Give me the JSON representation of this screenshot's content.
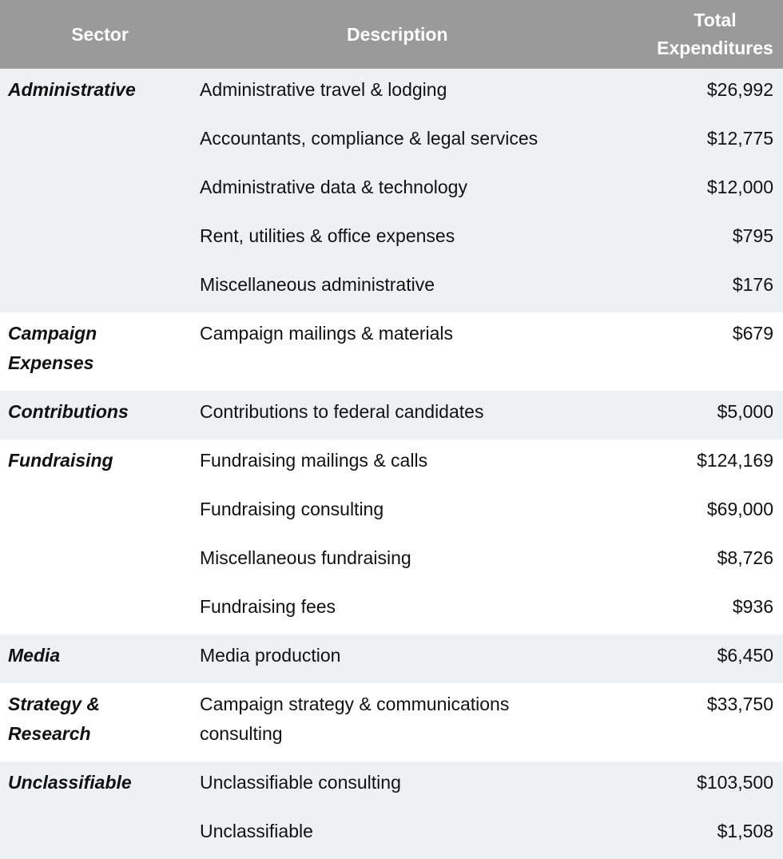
{
  "headers": {
    "sector": "Sector",
    "description": "Description",
    "total_line1": "Total",
    "total_line2": "Expenditures"
  },
  "groups": [
    {
      "sector": "Administrative",
      "shade": true,
      "rows": [
        {
          "desc": "Administrative travel & lodging",
          "amount": "$26,992"
        },
        {
          "desc": "Accountants, compliance & legal services",
          "amount": "$12,775"
        },
        {
          "desc": "Administrative data & technology",
          "amount": "$12,000"
        },
        {
          "desc": "Rent, utilities & office expenses",
          "amount": "$795"
        },
        {
          "desc": "Miscellaneous administrative",
          "amount": "$176"
        }
      ]
    },
    {
      "sector": "Campaign Expenses",
      "sector_line1": "Campaign",
      "sector_line2": "Expenses",
      "shade": false,
      "rows": [
        {
          "desc": "Campaign mailings & materials",
          "amount": "$679"
        }
      ]
    },
    {
      "sector": "Contributions",
      "shade": true,
      "rows": [
        {
          "desc": "Contributions to federal candidates",
          "amount": "$5,000"
        }
      ]
    },
    {
      "sector": "Fundraising",
      "shade": false,
      "rows": [
        {
          "desc": "Fundraising mailings & calls",
          "amount": "$124,169"
        },
        {
          "desc": "Fundraising consulting",
          "amount": "$69,000"
        },
        {
          "desc": "Miscellaneous fundraising",
          "amount": "$8,726"
        },
        {
          "desc": "Fundraising fees",
          "amount": "$936"
        }
      ]
    },
    {
      "sector": "Media",
      "shade": true,
      "rows": [
        {
          "desc": "Media production",
          "amount": "$6,450"
        }
      ]
    },
    {
      "sector": "Strategy & Research",
      "sector_line1": "Strategy &",
      "sector_line2": "Research",
      "shade": false,
      "rows": [
        {
          "desc": "Campaign strategy & communications consulting",
          "desc_line1": "Campaign strategy & communications",
          "desc_line2": "consulting",
          "amount": "$33,750"
        }
      ]
    },
    {
      "sector": "Unclassifiable",
      "shade": true,
      "rows": [
        {
          "desc": "Unclassifiable consulting",
          "amount": "$103,500"
        },
        {
          "desc": "Unclassifiable",
          "amount": "$1,508"
        }
      ]
    }
  ]
}
